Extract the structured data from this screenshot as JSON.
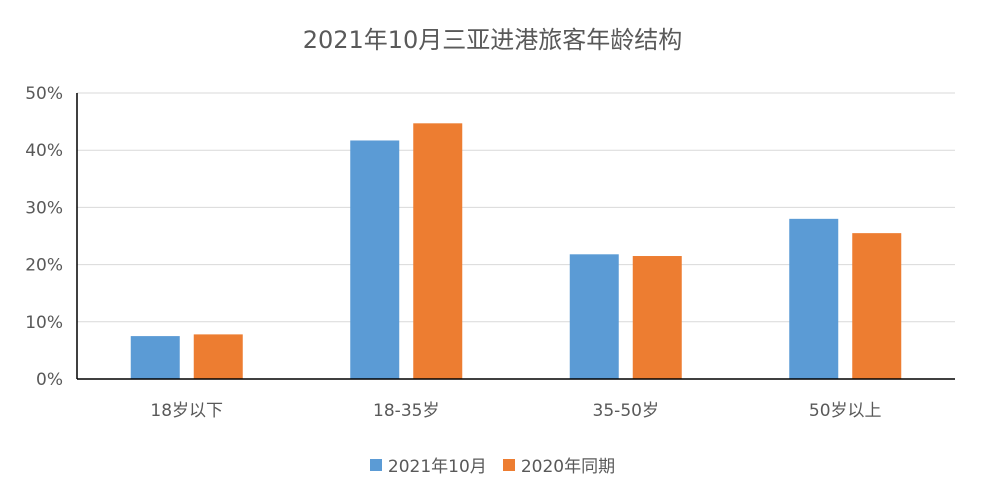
{
  "chart_data": {
    "type": "bar",
    "title": "2021年10月三亚进港旅客年龄结构",
    "categories": [
      "18岁以下",
      "18-35岁",
      "35-50岁",
      "50岁以上"
    ],
    "series": [
      {
        "name": "2021年10月",
        "color": "#5B9BD5",
        "values": [
          7.5,
          41.7,
          21.8,
          28.0
        ]
      },
      {
        "name": "2020年同期",
        "color": "#ED7D31",
        "values": [
          7.8,
          44.7,
          21.5,
          25.5
        ]
      }
    ],
    "ylim": [
      0,
      50
    ],
    "yticks": [
      "0%",
      "10%",
      "20%",
      "30%",
      "40%",
      "50%"
    ],
    "grid": true,
    "legend_position": "bottom"
  }
}
